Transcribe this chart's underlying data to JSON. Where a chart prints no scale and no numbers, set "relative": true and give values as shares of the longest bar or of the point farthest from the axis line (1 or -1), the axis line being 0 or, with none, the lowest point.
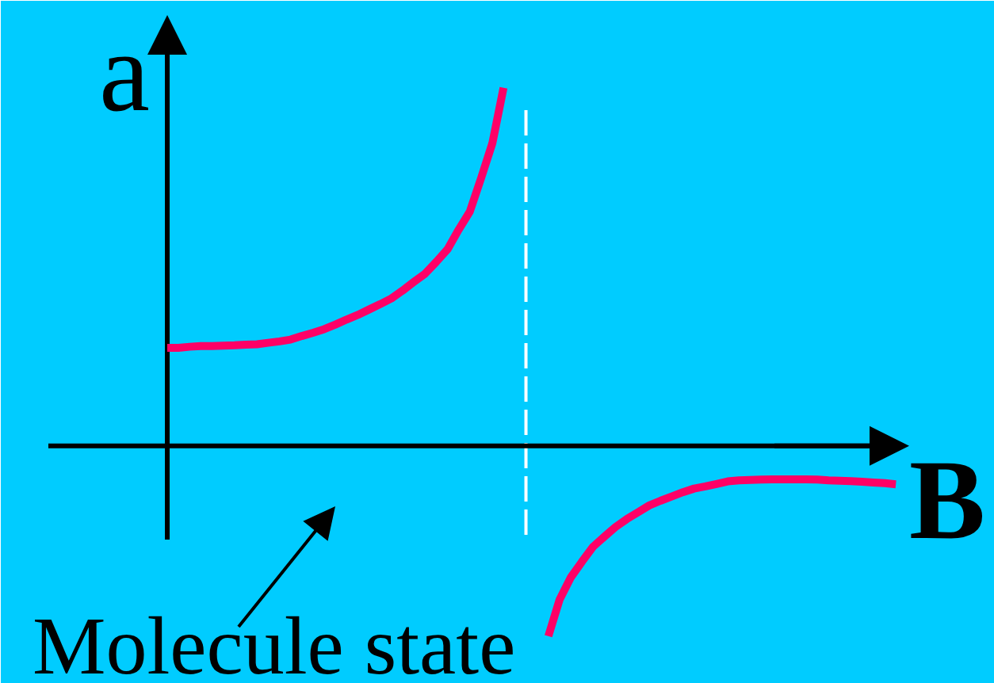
{
  "chart_data": {
    "type": "line",
    "relative": true,
    "xlabel": "B",
    "ylabel": "a",
    "annotations": [
      "Molecule state"
    ],
    "categories": [
      null,
      null,
      null,
      null,
      null,
      null,
      null,
      null,
      null,
      null,
      null,
      null,
      null,
      null,
      null,
      null,
      null,
      null,
      null,
      null,
      null,
      null,
      null,
      null,
      null,
      null,
      null,
      null,
      null,
      null,
      null,
      null,
      null,
      null,
      null,
      null,
      null,
      null,
      null,
      null,
      null,
      null,
      null,
      null,
      null,
      null,
      null,
      null,
      null,
      null,
      null,
      null,
      null,
      null,
      null,
      null,
      null,
      null,
      null,
      null,
      null,
      null,
      null,
      null,
      null,
      null
    ],
    "series": [
      {
        "color": "#ff0066",
        "values": [
          0.274,
          0.274,
          0.277,
          0.279,
          0.279,
          0.28,
          0.281,
          0.283,
          0.284,
          0.288,
          0.292,
          0.297,
          0.307,
          0.316,
          0.326,
          0.339,
          0.353,
          0.366,
          0.381,
          0.396,
          0.412,
          0.434,
          0.458,
          0.481,
          0.514,
          0.549,
          0.604,
          0.655,
          0.748,
          0.845,
          1,
          null,
          null,
          null,
          null,
          null,
          null,
          null,
          null,
          null,
          null,
          null,
          null,
          null,
          null,
          null,
          null,
          null,
          null,
          null,
          null,
          null,
          null,
          null,
          null,
          null,
          null,
          null,
          null,
          null,
          null,
          null,
          null,
          null,
          null,
          null
        ]
      },
      {
        "color": "#ff0066",
        "values": [
          null,
          null,
          null,
          null,
          null,
          null,
          null,
          null,
          null,
          null,
          null,
          null,
          null,
          null,
          null,
          null,
          null,
          null,
          null,
          null,
          null,
          null,
          null,
          null,
          null,
          null,
          null,
          null,
          null,
          null,
          null,
          null,
          null,
          null,
          -0.531,
          -0.429,
          -0.367,
          -0.323,
          -0.281,
          -0.253,
          -0.226,
          -0.204,
          -0.185,
          -0.166,
          -0.153,
          -0.141,
          -0.129,
          -0.119,
          -0.113,
          -0.106,
          -0.099,
          -0.096,
          -0.095,
          -0.094,
          -0.093,
          -0.093,
          -0.093,
          -0.093,
          -0.094,
          -0.096,
          -0.097,
          -0.098,
          -0.1,
          -0.102,
          -0.104,
          -0.107
        ]
      }
    ]
  }
}
